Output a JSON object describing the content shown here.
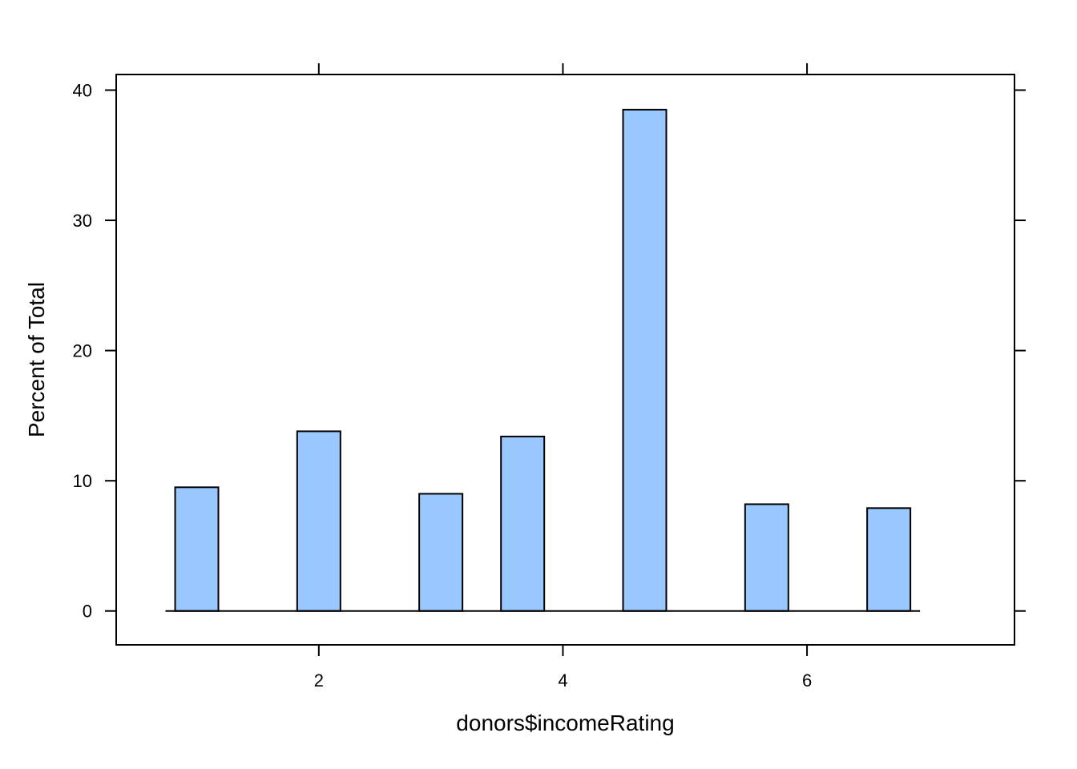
{
  "chart_data": {
    "type": "bar",
    "title": "",
    "xlabel": "donors$incomeRating",
    "ylabel": "Percent of Total",
    "x": [
      1,
      2,
      3,
      3.67,
      4.67,
      5.67,
      6.67
    ],
    "values": [
      9.5,
      13.8,
      9.0,
      13.4,
      38.5,
      8.2,
      7.9
    ],
    "xlim": [
      0.34,
      7.7
    ],
    "ylim": [
      -2.6,
      41.2
    ],
    "xticks": [
      2,
      4,
      6
    ],
    "xtick_labels": [
      "2",
      "4",
      "6"
    ],
    "yticks": [
      0,
      10,
      20,
      30,
      40
    ],
    "ytick_labels": [
      "0",
      "10",
      "20",
      "30",
      "40"
    ],
    "grid": false,
    "legend": "none",
    "bar_color": "#99C7FF"
  }
}
